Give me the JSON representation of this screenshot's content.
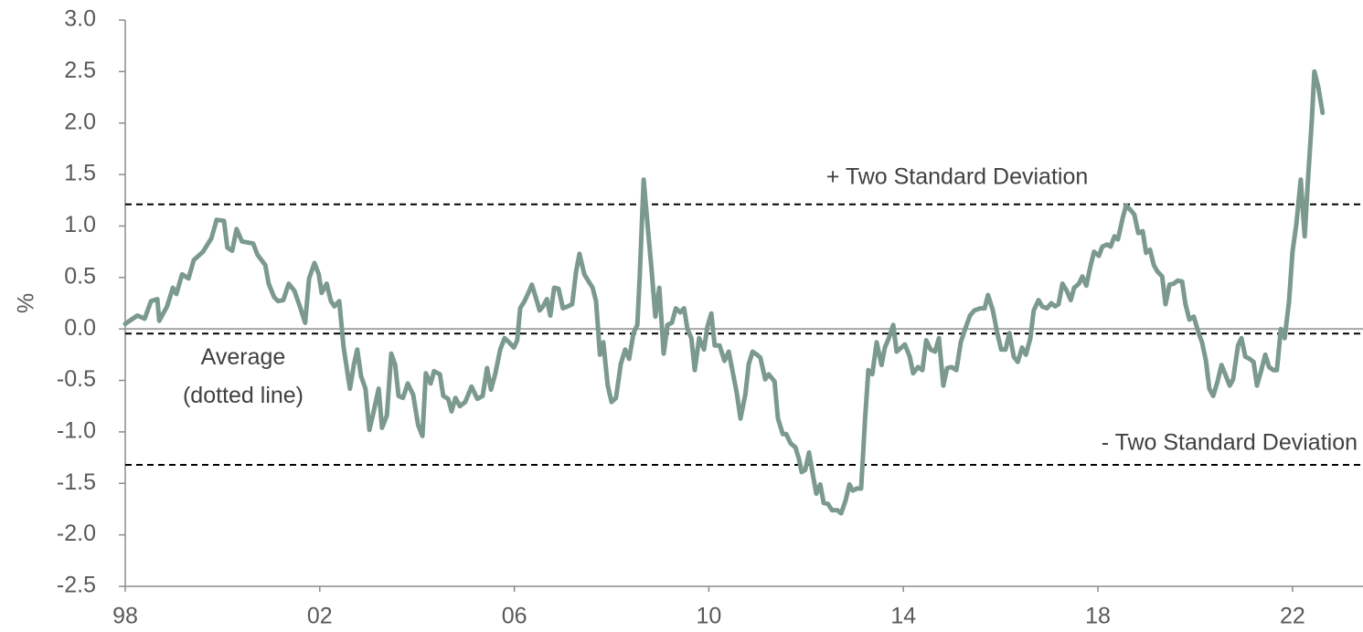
{
  "chart_data": {
    "type": "line",
    "y_label": "%",
    "xlim": [
      1998,
      2023.45
    ],
    "xticks": [
      {
        "value": 1998,
        "label": "98"
      },
      {
        "value": 2002,
        "label": "02"
      },
      {
        "value": 2006,
        "label": "06"
      },
      {
        "value": 2010,
        "label": "10"
      },
      {
        "value": 2014,
        "label": "14"
      },
      {
        "value": 2018,
        "label": "18"
      },
      {
        "value": 2022,
        "label": "22"
      }
    ],
    "ylim": [
      -2.5,
      3
    ],
    "yticks": [
      {
        "value": 3,
        "label": "3.0"
      },
      2.5,
      {
        "value": 2,
        "label": "2.0"
      },
      1.5,
      {
        "value": 1,
        "label": "1.0"
      },
      0.5,
      {
        "value": 0,
        "label": "0.0"
      },
      -0.5,
      {
        "value": -1,
        "label": "-1.0"
      },
      -1.5,
      {
        "value": -2,
        "label": "-2.0"
      },
      -2.5
    ],
    "zero_line": true,
    "reference_lines": [
      {
        "value": 1.21,
        "label_lines": [
          "+ Two Standard Deviation"
        ]
      },
      {
        "value": -0.045,
        "label_lines": [
          "Average",
          "(dotted line)"
        ]
      },
      {
        "value": -1.32,
        "label_lines": [
          "- Two Standard Deviation"
        ]
      }
    ],
    "x": [
      1998.0,
      1998.25,
      1998.4,
      1998.53,
      1998.66,
      1998.7,
      1998.86,
      1998.98,
      1999.05,
      1999.17,
      1999.3,
      1999.41,
      1999.6,
      1999.77,
      1999.88,
      2000.03,
      2000.1,
      2000.2,
      2000.29,
      2000.4,
      2000.63,
      2000.72,
      2000.88,
      2000.95,
      2001.06,
      2001.14,
      2001.25,
      2001.36,
      2001.48,
      2001.59,
      2001.7,
      2001.78,
      2001.89,
      2001.98,
      2002.04,
      2002.14,
      2002.23,
      2002.3,
      2002.4,
      2002.49,
      2002.62,
      2002.7,
      2002.77,
      2002.85,
      2002.94,
      2003.02,
      2003.09,
      2003.21,
      2003.28,
      2003.38,
      2003.47,
      2003.55,
      2003.62,
      2003.71,
      2003.81,
      2003.92,
      2004.02,
      2004.11,
      2004.18,
      2004.28,
      2004.35,
      2004.47,
      2004.54,
      2004.64,
      2004.71,
      2004.79,
      2004.88,
      2004.99,
      2005.12,
      2005.24,
      2005.35,
      2005.44,
      2005.52,
      2005.61,
      2005.71,
      2005.8,
      2005.89,
      2005.99,
      2006.06,
      2006.12,
      2006.21,
      2006.29,
      2006.36,
      2006.44,
      2006.52,
      2006.59,
      2006.67,
      2006.74,
      2006.82,
      2006.91,
      2007.0,
      2007.1,
      2007.19,
      2007.27,
      2007.34,
      2007.44,
      2007.53,
      2007.61,
      2007.68,
      2007.76,
      2007.83,
      2007.92,
      2008.0,
      2008.09,
      2008.19,
      2008.28,
      2008.36,
      2008.45,
      2008.53,
      2008.58,
      2008.66,
      2008.73,
      2008.83,
      2008.9,
      2008.98,
      2009.07,
      2009.15,
      2009.24,
      2009.32,
      2009.41,
      2009.49,
      2009.56,
      2009.64,
      2009.71,
      2009.8,
      2009.9,
      2009.97,
      2010.05,
      2010.12,
      2010.22,
      2010.32,
      2010.41,
      2010.5,
      2010.58,
      2010.65,
      2010.75,
      2010.82,
      2010.9,
      2010.99,
      2011.06,
      2011.16,
      2011.23,
      2011.35,
      2011.42,
      2011.52,
      2011.59,
      2011.68,
      2011.78,
      2011.85,
      2011.91,
      2011.98,
      2012.06,
      2012.14,
      2012.21,
      2012.29,
      2012.36,
      2012.45,
      2012.53,
      2012.64,
      2012.72,
      2012.81,
      2012.89,
      2012.96,
      2013.04,
      2013.13,
      2013.21,
      2013.28,
      2013.36,
      2013.45,
      2013.55,
      2013.62,
      2013.7,
      2013.79,
      2013.86,
      2013.96,
      2014.03,
      2014.13,
      2014.2,
      2014.3,
      2014.39,
      2014.47,
      2014.56,
      2014.65,
      2014.73,
      2014.82,
      2014.9,
      2014.99,
      2015.09,
      2015.18,
      2015.27,
      2015.37,
      2015.46,
      2015.58,
      2015.67,
      2015.74,
      2015.84,
      2015.93,
      2016.01,
      2016.1,
      2016.18,
      2016.27,
      2016.35,
      2016.44,
      2016.52,
      2016.61,
      2016.68,
      2016.78,
      2016.85,
      2016.95,
      2017.04,
      2017.12,
      2017.19,
      2017.27,
      2017.36,
      2017.44,
      2017.51,
      2017.61,
      2017.68,
      2017.76,
      2017.85,
      2017.92,
      2018.02,
      2018.09,
      2018.19,
      2018.26,
      2018.34,
      2018.41,
      2018.51,
      2018.58,
      2018.68,
      2018.75,
      2018.83,
      2018.92,
      2018.99,
      2019.07,
      2019.15,
      2019.22,
      2019.32,
      2019.39,
      2019.47,
      2019.56,
      2019.64,
      2019.73,
      2019.8,
      2019.88,
      2019.97,
      2020.07,
      2020.14,
      2020.22,
      2020.29,
      2020.37,
      2020.46,
      2020.54,
      2020.61,
      2020.71,
      2020.78,
      2020.88,
      2020.95,
      2021.03,
      2021.12,
      2021.2,
      2021.27,
      2021.36,
      2021.44,
      2021.52,
      2021.61,
      2021.68,
      2021.76,
      2021.84,
      2021.93,
      2022.0,
      2022.08,
      2022.17,
      2022.25,
      2022.32,
      2022.4,
      2022.45,
      2022.53,
      2022.62
    ],
    "series": [
      {
        "color": "#7b9a8d",
        "values": [
          0.05,
          0.13,
          0.1,
          0.27,
          0.29,
          0.08,
          0.22,
          0.4,
          0.34,
          0.53,
          0.49,
          0.67,
          0.75,
          0.88,
          1.06,
          1.05,
          0.79,
          0.76,
          0.97,
          0.85,
          0.83,
          0.72,
          0.62,
          0.44,
          0.31,
          0.27,
          0.28,
          0.44,
          0.37,
          0.22,
          0.06,
          0.49,
          0.64,
          0.53,
          0.35,
          0.44,
          0.27,
          0.22,
          0.27,
          -0.18,
          -0.58,
          -0.35,
          -0.2,
          -0.46,
          -0.58,
          -0.98,
          -0.84,
          -0.58,
          -0.96,
          -0.84,
          -0.24,
          -0.35,
          -0.65,
          -0.67,
          -0.53,
          -0.64,
          -0.93,
          -1.04,
          -0.43,
          -0.53,
          -0.41,
          -0.44,
          -0.65,
          -0.68,
          -0.8,
          -0.67,
          -0.75,
          -0.71,
          -0.56,
          -0.68,
          -0.65,
          -0.38,
          -0.59,
          -0.43,
          -0.2,
          -0.09,
          -0.13,
          -0.18,
          -0.11,
          0.2,
          0.27,
          0.35,
          0.43,
          0.31,
          0.18,
          0.22,
          0.29,
          0.13,
          0.4,
          0.39,
          0.2,
          0.22,
          0.24,
          0.56,
          0.73,
          0.53,
          0.46,
          0.4,
          0.27,
          -0.25,
          -0.13,
          -0.55,
          -0.71,
          -0.67,
          -0.34,
          -0.2,
          -0.29,
          -0.04,
          0.04,
          0.53,
          1.45,
          1.06,
          0.53,
          0.12,
          0.4,
          -0.24,
          0.04,
          0.06,
          0.2,
          0.16,
          0.2,
          0.0,
          -0.09,
          -0.4,
          -0.09,
          -0.2,
          0.02,
          0.15,
          -0.16,
          -0.16,
          -0.31,
          -0.22,
          -0.44,
          -0.64,
          -0.87,
          -0.64,
          -0.34,
          -0.22,
          -0.25,
          -0.28,
          -0.49,
          -0.44,
          -0.51,
          -0.87,
          -1.02,
          -1.02,
          -1.11,
          -1.15,
          -1.26,
          -1.39,
          -1.37,
          -1.2,
          -1.42,
          -1.6,
          -1.51,
          -1.69,
          -1.7,
          -1.76,
          -1.76,
          -1.79,
          -1.67,
          -1.51,
          -1.57,
          -1.55,
          -1.55,
          -0.89,
          -0.4,
          -0.44,
          -0.13,
          -0.35,
          -0.18,
          -0.09,
          0.04,
          -0.22,
          -0.18,
          -0.15,
          -0.27,
          -0.43,
          -0.37,
          -0.4,
          -0.11,
          -0.2,
          -0.22,
          -0.09,
          -0.55,
          -0.38,
          -0.37,
          -0.4,
          -0.13,
          0.0,
          0.13,
          0.18,
          0.2,
          0.2,
          0.33,
          0.18,
          -0.04,
          -0.2,
          -0.2,
          -0.04,
          -0.27,
          -0.32,
          -0.18,
          -0.25,
          -0.09,
          0.18,
          0.28,
          0.22,
          0.2,
          0.25,
          0.22,
          0.24,
          0.44,
          0.37,
          0.28,
          0.4,
          0.44,
          0.51,
          0.42,
          0.62,
          0.75,
          0.71,
          0.8,
          0.82,
          0.8,
          0.9,
          0.87,
          1.08,
          1.2,
          1.15,
          1.11,
          0.93,
          0.95,
          0.74,
          0.77,
          0.62,
          0.56,
          0.51,
          0.24,
          0.43,
          0.44,
          0.47,
          0.46,
          0.24,
          0.09,
          0.12,
          -0.04,
          -0.13,
          -0.31,
          -0.58,
          -0.65,
          -0.51,
          -0.35,
          -0.43,
          -0.55,
          -0.49,
          -0.16,
          -0.09,
          -0.27,
          -0.29,
          -0.32,
          -0.55,
          -0.4,
          -0.25,
          -0.37,
          -0.4,
          -0.4,
          0.0,
          -0.09,
          0.27,
          0.75,
          1.02,
          1.45,
          0.9,
          1.46,
          2.04,
          2.5,
          2.35,
          2.1
        ]
      }
    ]
  }
}
